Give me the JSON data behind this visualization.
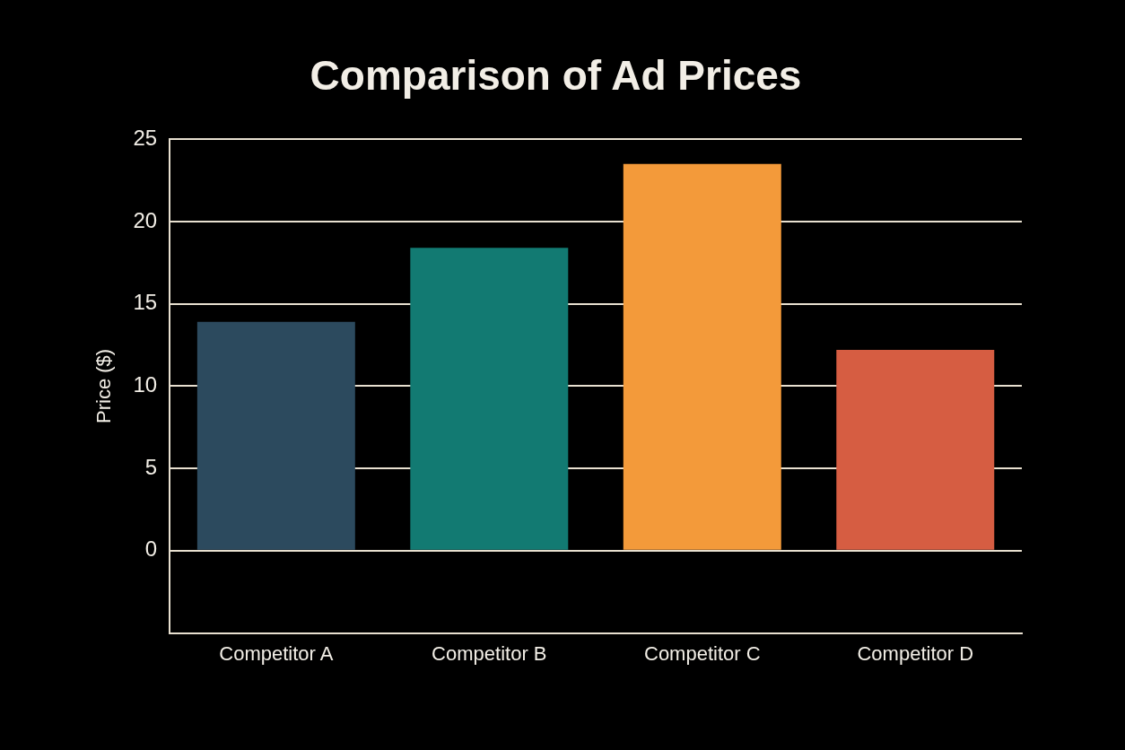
{
  "chart_data": {
    "type": "bar",
    "title": "Comparison of Ad Prices",
    "ylabel": "Price ($)",
    "categories": [
      "Competitor A",
      "Competitor B",
      "Competitor C",
      "Competitor D"
    ],
    "values": [
      13.9,
      18.4,
      23.5,
      12.2
    ],
    "colors": [
      "#2c4a5e",
      "#127a72",
      "#f39a3a",
      "#d65d42"
    ],
    "ylim": [
      -5,
      25
    ],
    "yticks": [
      0,
      5,
      10,
      15,
      20,
      25
    ],
    "grid": "y"
  }
}
